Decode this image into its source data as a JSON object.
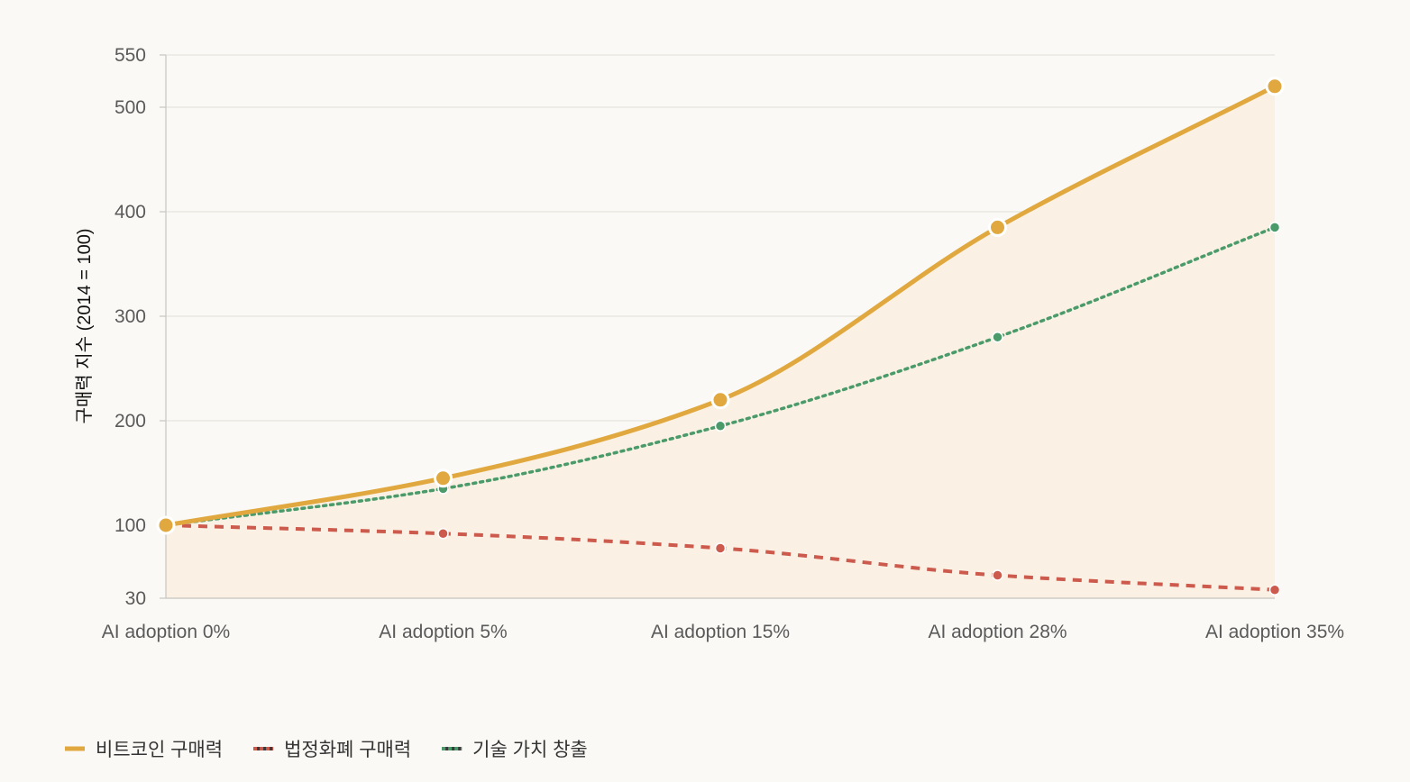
{
  "chart_data": {
    "type": "line",
    "categories": [
      "AI adoption 0%",
      "AI adoption 5%",
      "AI adoption 15%",
      "AI adoption 28%",
      "AI adoption 35%"
    ],
    "series": [
      {
        "name": "비트코인 구매력",
        "values": [
          100,
          145,
          220,
          385,
          520
        ],
        "color": "#e0a83e",
        "style": "solid",
        "fill": true
      },
      {
        "name": "법정화폐 구매력",
        "values": [
          100,
          92,
          78,
          52,
          38
        ],
        "color": "#cc5a4d",
        "style": "dashed",
        "fill": false
      },
      {
        "name": "기술 가치 창출",
        "values": [
          100,
          135,
          195,
          280,
          385
        ],
        "color": "#4a9a6a",
        "style": "dotted",
        "fill": false
      }
    ],
    "title": "",
    "xlabel": "",
    "ylabel": "구매력 지수 (2014 = 100)",
    "ylim": [
      30,
      550
    ],
    "yticks": [
      30,
      100,
      200,
      300,
      400,
      500,
      550
    ],
    "grid": true,
    "legend_position": "bottom-left",
    "fill_color": "#faf1e4"
  }
}
